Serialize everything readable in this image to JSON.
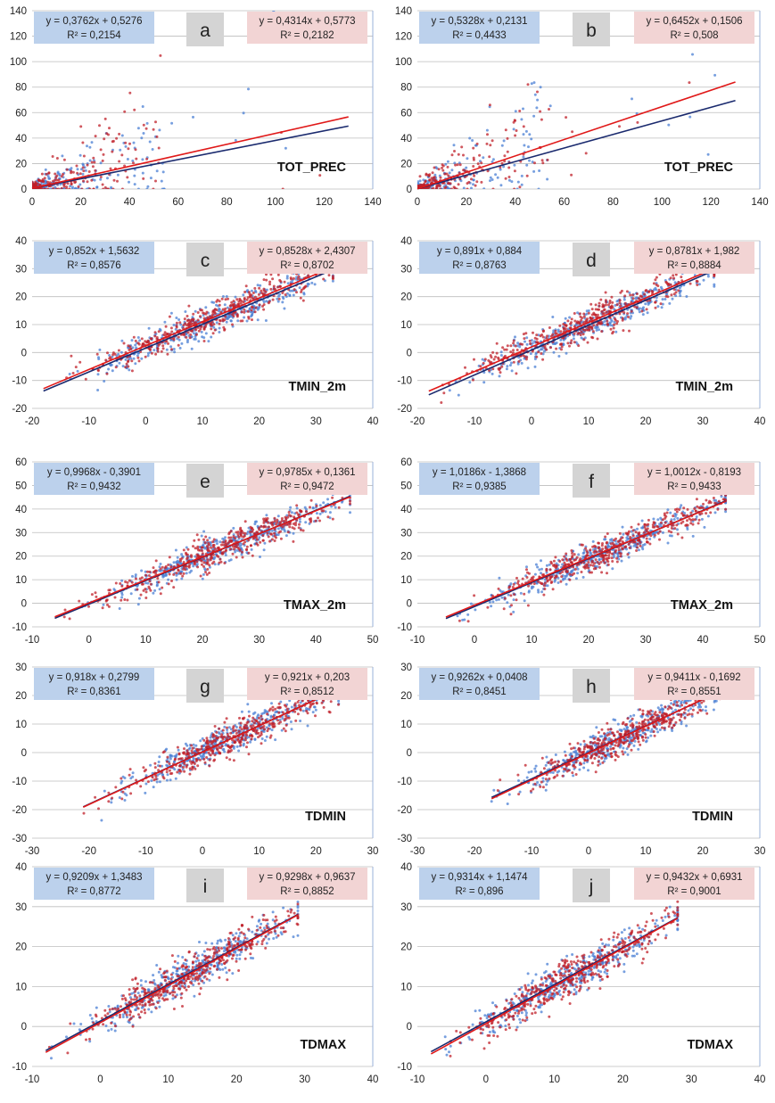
{
  "colors": {
    "blue_series": "#4a7fd4",
    "red_series": "#c0202a",
    "blue_line": "#1a2a6e",
    "red_line": "#e01818",
    "blue_box": "#bcd1ec",
    "red_box": "#f2d4d4",
    "panel_letter_box": "#d4d4d4",
    "grid": "#bdbdbd",
    "axis_text": "#222222"
  },
  "chart_data": [
    {
      "id": "a",
      "type": "scatter",
      "panel_label": "a",
      "variable_label": "TOT_PREC",
      "xlim": [
        0,
        140
      ],
      "ylim": [
        0,
        140
      ],
      "x_ticks": [
        "0",
        "20",
        "40",
        "60",
        "80",
        "100",
        "120",
        "140"
      ],
      "y_ticks": [
        "0",
        "20",
        "40",
        "60",
        "80",
        "100",
        "120",
        "140"
      ],
      "grid": "horizontal",
      "series": [
        {
          "color_key": "blue",
          "equation": "y = 0,3762x + 0,5276",
          "r2": "R² = 0,2154",
          "slope": 0.3762,
          "intercept": 0.5276,
          "line_x": [
            0,
            130
          ]
        },
        {
          "color_key": "red",
          "equation": "y = 0,4314x + 0,5773",
          "r2": "R² = 0,2182",
          "slope": 0.4314,
          "intercept": 0.5773,
          "line_x": [
            0,
            130
          ]
        }
      ]
    },
    {
      "id": "b",
      "type": "scatter",
      "panel_label": "b",
      "variable_label": "TOT_PREC",
      "xlim": [
        0,
        140
      ],
      "ylim": [
        0,
        140
      ],
      "x_ticks": [
        "0",
        "20",
        "40",
        "60",
        "80",
        "100",
        "120",
        "140"
      ],
      "y_ticks": [
        "0",
        "20",
        "40",
        "60",
        "80",
        "100",
        "120",
        "140"
      ],
      "grid": "horizontal",
      "series": [
        {
          "color_key": "blue",
          "equation": "y = 0,5328x + 0,2131",
          "r2": "R² = 0,4433",
          "slope": 0.5328,
          "intercept": 0.2131,
          "line_x": [
            0,
            130
          ]
        },
        {
          "color_key": "red",
          "equation": "y = 0,6452x + 0,1506",
          "r2": "R² = 0,508",
          "slope": 0.6452,
          "intercept": 0.1506,
          "line_x": [
            0,
            130
          ]
        }
      ]
    },
    {
      "id": "c",
      "type": "scatter",
      "panel_label": "c",
      "variable_label": "TMIN_2m",
      "xlim": [
        -20,
        40
      ],
      "ylim": [
        -20,
        40
      ],
      "x_ticks": [
        "-20",
        "-10",
        "0",
        "10",
        "20",
        "30",
        "40"
      ],
      "y_ticks": [
        "-20",
        "-10",
        "0",
        "10",
        "20",
        "30",
        "40"
      ],
      "grid": "horizontal",
      "series": [
        {
          "color_key": "blue",
          "equation": "y = 0,852x + 1,5632",
          "r2": "R² = 0,8576",
          "slope": 0.852,
          "intercept": 1.5632,
          "line_x": [
            -18,
            33
          ]
        },
        {
          "color_key": "red",
          "equation": "y = 0,8528x + 2,4307",
          "r2": "R² = 0,8702",
          "slope": 0.8528,
          "intercept": 2.4307,
          "line_x": [
            -18,
            33
          ]
        }
      ]
    },
    {
      "id": "d",
      "type": "scatter",
      "panel_label": "d",
      "variable_label": "TMIN_2m",
      "xlim": [
        -20,
        40
      ],
      "ylim": [
        -20,
        40
      ],
      "x_ticks": [
        "-20",
        "-10",
        "0",
        "10",
        "20",
        "30",
        "40"
      ],
      "y_ticks": [
        "-20",
        "-10",
        "0",
        "10",
        "20",
        "30",
        "40"
      ],
      "grid": "horizontal",
      "series": [
        {
          "color_key": "blue",
          "equation": "y = 0,891x + 0,884",
          "r2": "R² = 0,8763",
          "slope": 0.891,
          "intercept": 0.884,
          "line_x": [
            -18,
            32
          ]
        },
        {
          "color_key": "red",
          "equation": "y = 0,8781x + 1,982",
          "r2": "R² = 0,8884",
          "slope": 0.8781,
          "intercept": 1.982,
          "line_x": [
            -18,
            32
          ]
        }
      ]
    },
    {
      "id": "e",
      "type": "scatter",
      "panel_label": "e",
      "variable_label": "TMAX_2m",
      "xlim": [
        -10,
        50
      ],
      "ylim": [
        -10,
        60
      ],
      "x_ticks": [
        "-10",
        "0",
        "10",
        "20",
        "30",
        "40",
        "50"
      ],
      "y_ticks": [
        "-10",
        "0",
        "10",
        "20",
        "30",
        "40",
        "50",
        "60"
      ],
      "grid": "horizontal",
      "series": [
        {
          "color_key": "blue",
          "equation": "y = 0,9968x - 0,3901",
          "r2": "R² = 0,9432",
          "slope": 0.9968,
          "intercept": -0.3901,
          "line_x": [
            -6,
            46
          ]
        },
        {
          "color_key": "red",
          "equation": "y = 0,9785x + 0,1361",
          "r2": "R² = 0,9472",
          "slope": 0.9785,
          "intercept": 0.1361,
          "line_x": [
            -6,
            46
          ]
        }
      ]
    },
    {
      "id": "f",
      "type": "scatter",
      "panel_label": "f",
      "variable_label": "TMAX_2m",
      "xlim": [
        -10,
        50
      ],
      "ylim": [
        -10,
        60
      ],
      "x_ticks": [
        "-10",
        "0",
        "10",
        "20",
        "30",
        "40",
        "50"
      ],
      "y_ticks": [
        "-10",
        "0",
        "10",
        "20",
        "30",
        "40",
        "50",
        "60"
      ],
      "grid": "horizontal",
      "series": [
        {
          "color_key": "blue",
          "equation": "y = 1,0186x - 1,3868",
          "r2": "R² = 0,9385",
          "slope": 1.0186,
          "intercept": -1.3868,
          "line_x": [
            -5,
            44
          ]
        },
        {
          "color_key": "red",
          "equation": "y = 1,0012x - 0,8193",
          "r2": "R² = 0,9433",
          "slope": 1.0012,
          "intercept": -0.8193,
          "line_x": [
            -5,
            44
          ]
        }
      ]
    },
    {
      "id": "g",
      "type": "scatter",
      "panel_label": "g",
      "variable_label": "TDMIN",
      "xlim": [
        -30,
        30
      ],
      "ylim": [
        -30,
        30
      ],
      "x_ticks": [
        "-30",
        "-20",
        "-10",
        "0",
        "10",
        "20",
        "30"
      ],
      "y_ticks": [
        "-30",
        "-20",
        "-10",
        "0",
        "10",
        "20",
        "30"
      ],
      "grid": "horizontal",
      "series": [
        {
          "color_key": "blue",
          "equation": "y = 0,918x + 0,2799",
          "r2": "R² = 0,8361",
          "slope": 0.918,
          "intercept": 0.2799,
          "line_x": [
            -21,
            24
          ]
        },
        {
          "color_key": "red",
          "equation": "y = 0,921x + 0,203",
          "r2": "R² = 0,8512",
          "slope": 0.921,
          "intercept": 0.203,
          "line_x": [
            -21,
            24
          ]
        }
      ]
    },
    {
      "id": "h",
      "type": "scatter",
      "panel_label": "h",
      "variable_label": "TDMIN",
      "xlim": [
        -30,
        30
      ],
      "ylim": [
        -30,
        30
      ],
      "x_ticks": [
        "-30",
        "-20",
        "-10",
        "0",
        "10",
        "20",
        "30"
      ],
      "y_ticks": [
        "-30",
        "-20",
        "-10",
        "0",
        "10",
        "20",
        "30"
      ],
      "grid": "horizontal",
      "series": [
        {
          "color_key": "blue",
          "equation": "y = 0,9262x + 0,0408",
          "r2": "R² = 0,8451",
          "slope": 0.9262,
          "intercept": 0.0408,
          "line_x": [
            -17,
            23
          ]
        },
        {
          "color_key": "red",
          "equation": "y = 0,9411x - 0,1692",
          "r2": "R² = 0,8551",
          "slope": 0.9411,
          "intercept": -0.1692,
          "line_x": [
            -17,
            23
          ]
        }
      ]
    },
    {
      "id": "i",
      "type": "scatter",
      "panel_label": "i",
      "variable_label": "TDMAX",
      "xlim": [
        -10,
        40
      ],
      "ylim": [
        -10,
        40
      ],
      "x_ticks": [
        "-10",
        "0",
        "10",
        "20",
        "30",
        "40"
      ],
      "y_ticks": [
        "-10",
        "0",
        "10",
        "20",
        "30",
        "40"
      ],
      "grid": "horizontal",
      "series": [
        {
          "color_key": "blue",
          "equation": "y = 0,9209x + 1,3483",
          "r2": "R² = 0,8772",
          "slope": 0.9209,
          "intercept": 1.3483,
          "line_x": [
            -8,
            29
          ]
        },
        {
          "color_key": "red",
          "equation": "y = 0,9298x + 0,9637",
          "r2": "R² = 0,8852",
          "slope": 0.9298,
          "intercept": 0.9637,
          "line_x": [
            -8,
            29
          ]
        }
      ]
    },
    {
      "id": "j",
      "type": "scatter",
      "panel_label": "j",
      "variable_label": "TDMAX",
      "xlim": [
        -10,
        40
      ],
      "ylim": [
        -10,
        40
      ],
      "x_ticks": [
        "-10",
        "0",
        "10",
        "20",
        "30",
        "40"
      ],
      "y_ticks": [
        "-10",
        "0",
        "10",
        "20",
        "30",
        "40"
      ],
      "grid": "horizontal",
      "series": [
        {
          "color_key": "blue",
          "equation": "y = 0,9314x + 1,1474",
          "r2": "R² = 0,896",
          "slope": 0.9314,
          "intercept": 1.1474,
          "line_x": [
            -8,
            28
          ]
        },
        {
          "color_key": "red",
          "equation": "y = 0,9432x + 0,6931",
          "r2": "R² = 0,9001",
          "slope": 0.9432,
          "intercept": 0.6931,
          "line_x": [
            -8,
            28
          ]
        }
      ]
    }
  ]
}
